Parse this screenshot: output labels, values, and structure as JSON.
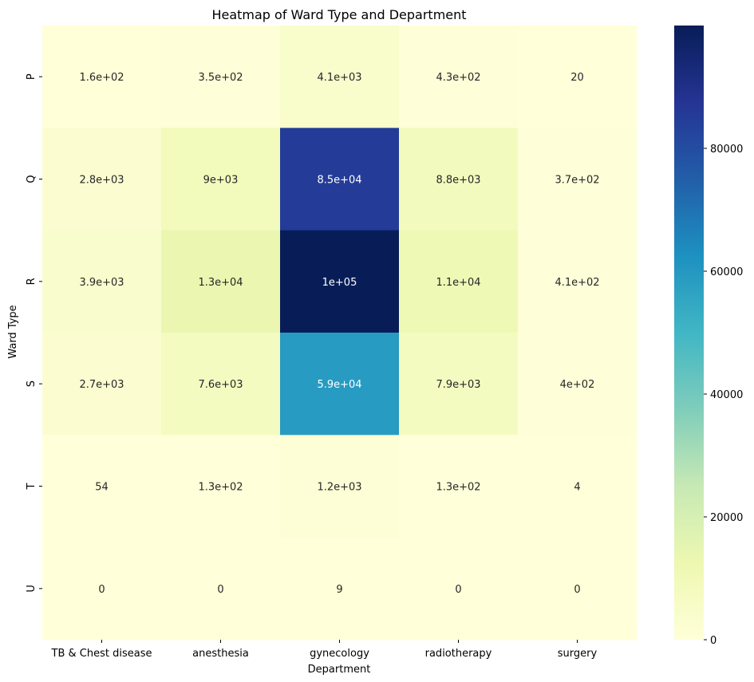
{
  "chart_data": {
    "type": "heatmap",
    "title": "Heatmap of Ward Type and Department",
    "xlabel": "Department",
    "ylabel": "Ward Type",
    "columns": [
      "TB & Chest disease",
      "anesthesia",
      "gynecology",
      "radiotherapy",
      "surgery"
    ],
    "rows": [
      "P",
      "Q",
      "R",
      "S",
      "T",
      "U"
    ],
    "values": [
      [
        160,
        350,
        4100,
        430,
        20
      ],
      [
        2800,
        9000,
        85000,
        8800,
        370
      ],
      [
        3900,
        13000,
        100000,
        11000,
        410
      ],
      [
        2700,
        7600,
        59000,
        7900,
        400
      ],
      [
        54,
        130,
        1200,
        130,
        4
      ],
      [
        0,
        0,
        9,
        0,
        0
      ]
    ],
    "annotations": [
      [
        "1.6e+02",
        "3.5e+02",
        "4.1e+03",
        "4.3e+02",
        "20"
      ],
      [
        "2.8e+03",
        "9e+03",
        "8.5e+04",
        "8.8e+03",
        "3.7e+02"
      ],
      [
        "3.9e+03",
        "1.3e+04",
        "1e+05",
        "1.1e+04",
        "4.1e+02"
      ],
      [
        "2.7e+03",
        "7.6e+03",
        "5.9e+04",
        "7.9e+03",
        "4e+02"
      ],
      [
        "54",
        "1.3e+02",
        "1.2e+03",
        "1.3e+02",
        "4"
      ],
      [
        "0",
        "0",
        "9",
        "0",
        "0"
      ]
    ],
    "colormap": "YlGnBu",
    "colorbar": {
      "vmin": 0,
      "vmax": 100000,
      "ticks": [
        0,
        20000,
        40000,
        60000,
        80000
      ],
      "tick_labels": [
        "0",
        "20000",
        "40000",
        "60000",
        "80000"
      ]
    },
    "grid": false
  }
}
